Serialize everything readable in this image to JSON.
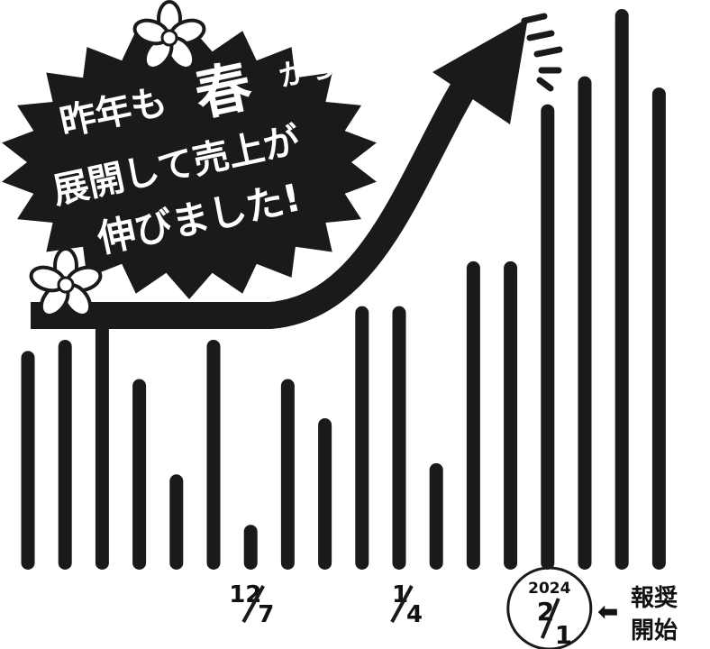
{
  "chart_data": {
    "type": "bar",
    "title": "",
    "xlabel": "",
    "ylabel": "",
    "grid": false,
    "legend": "none",
    "bar_color": "#1a1a1a",
    "ylim": [
      0,
      100
    ],
    "values": [
      39,
      41,
      45,
      34,
      17,
      41,
      8,
      34,
      27,
      47,
      47,
      19,
      55,
      55,
      83,
      88,
      100,
      86
    ],
    "date_labels": [
      {
        "bar_index": 6,
        "month": "12",
        "day": "7"
      },
      {
        "bar_index": 10,
        "month": "1",
        "day": "4"
      },
      {
        "bar_index": 14,
        "year": "2024",
        "month": "2",
        "day": "1",
        "circled": true
      }
    ]
  },
  "callout": {
    "line1_a": "昨年も",
    "line1_big": "春",
    "line1_b": "から",
    "line2": "展開して売上が",
    "line3": "伸びました!"
  },
  "annotation": {
    "arrow_glyph": "⬅",
    "line1": "報奨",
    "line2": "開始"
  }
}
